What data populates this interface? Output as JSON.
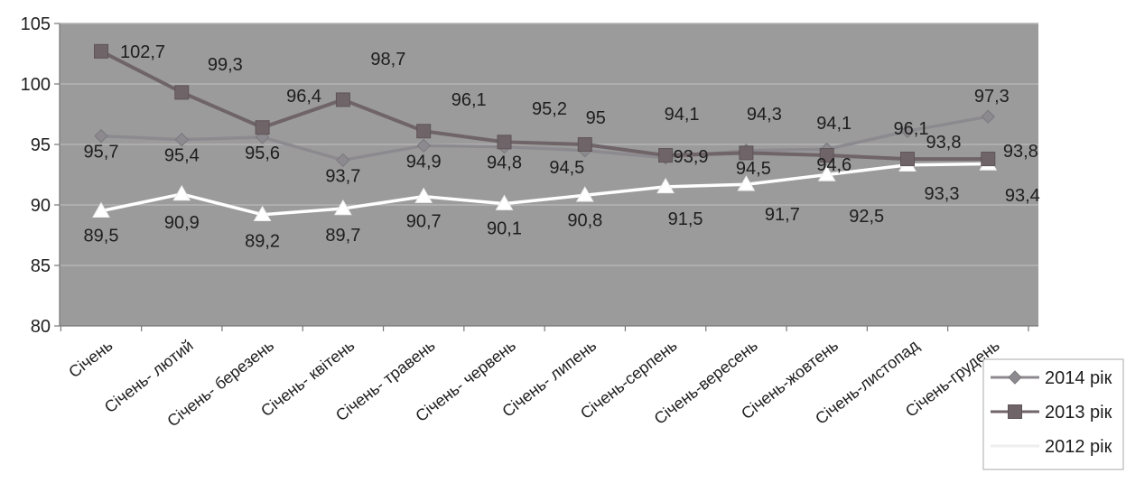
{
  "chart_data": {
    "type": "line",
    "categories": [
      "Січень",
      "Січень- лютий",
      "Січень- березень",
      "Січень- квітень",
      "Січень- травень",
      "Січень- червень",
      "Січень- липень",
      "Січень-серпень",
      "Січень-вересень",
      "Січень-жовтень",
      "Січень-листопад",
      "Січень-грудень"
    ],
    "series": [
      {
        "name": "2014 рік",
        "values": [
          95.7,
          95.4,
          95.6,
          93.7,
          94.9,
          94.8,
          94.5,
          93.9,
          94.5,
          94.6,
          96.1,
          97.3
        ],
        "labels": [
          "95,7",
          "95,4",
          "95,6",
          "93,7",
          "94,9",
          "94,8",
          "94,5",
          "93,9",
          "94,5",
          "94,6",
          "96,1",
          "97,3"
        ],
        "color": "#8c8a8e",
        "marker": "diamond"
      },
      {
        "name": "2013 рік",
        "values": [
          102.7,
          99.3,
          96.4,
          98.7,
          96.1,
          95.2,
          95,
          94.1,
          94.3,
          94.1,
          93.8,
          93.8
        ],
        "labels": [
          "102,7",
          "99,3",
          "96,4",
          "98,7",
          "96,1",
          "95,2",
          "95",
          "94,1",
          "94,3",
          "94,1",
          "93,8",
          "93,8"
        ],
        "color": "#6f6467",
        "marker": "square"
      },
      {
        "name": "2012 рік",
        "values": [
          89.5,
          90.9,
          89.2,
          89.7,
          90.7,
          90.1,
          90.8,
          91.5,
          91.7,
          92.5,
          93.3,
          93.4
        ],
        "labels": [
          "89,5",
          "90,9",
          "89,2",
          "89,7",
          "90,7",
          "90,1",
          "90,8",
          "91,5",
          "91,7",
          "92,5",
          "93,3",
          "93,4"
        ],
        "color": "#ffffff",
        "marker": "triangle"
      }
    ],
    "ylim": [
      80,
      105
    ],
    "yticks": [
      80,
      85,
      90,
      95,
      100,
      105
    ],
    "grid": true,
    "legend": "bottom-right",
    "colors": {
      "plot_bg": "#9b9b9c",
      "grid": "#b4b4b5",
      "axis": "#777777",
      "text": "#1e1e1e",
      "legend_bg": "#ffffff",
      "legend_border": "#aaaaaa"
    }
  }
}
